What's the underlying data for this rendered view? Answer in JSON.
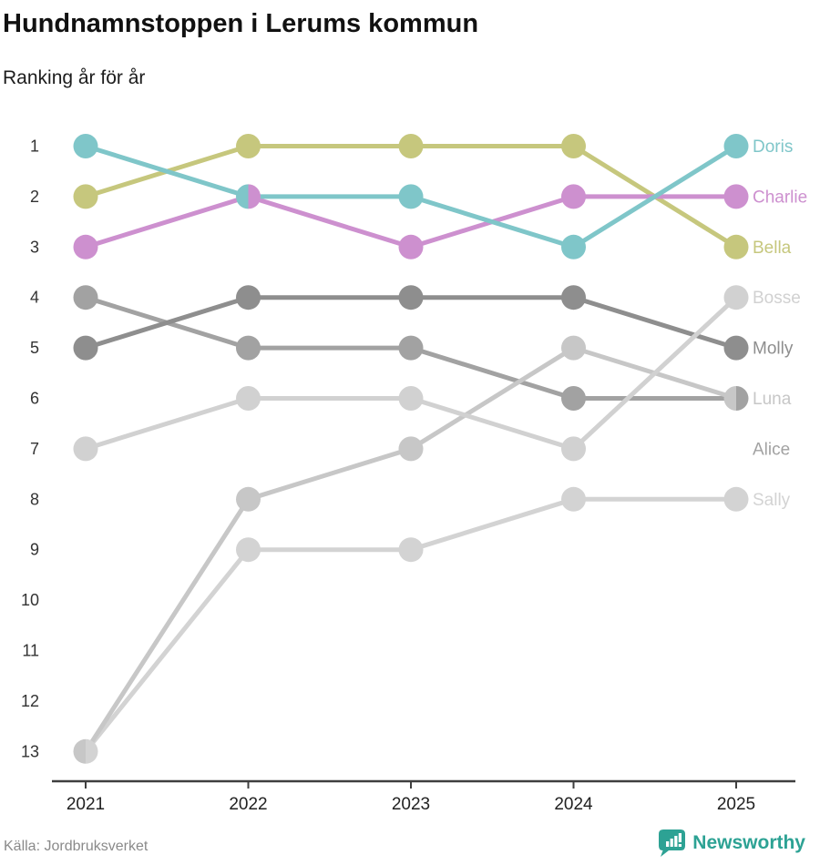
{
  "page": {
    "title": "Hundnamnstoppen i Lerums kommun",
    "subtitle": "Ranking år för år",
    "source": "Källa: Jordbruksverket",
    "brand": "Newsworthy",
    "brand_color": "#2da294",
    "logo_icon": "bar-chart-speech-bubble-icon"
  },
  "chart_data": {
    "type": "line",
    "variant": "bump_ranking_chart",
    "title": "Hundnamnstoppen i Lerums kommun",
    "subtitle": "Ranking år för år",
    "x_labels": [
      "2021",
      "2022",
      "2023",
      "2024",
      "2025"
    ],
    "y_ticks": [
      1,
      2,
      3,
      4,
      5,
      6,
      7,
      8,
      9,
      10,
      11,
      12,
      13
    ],
    "ylim": [
      1,
      13
    ],
    "y_inverted": true,
    "grid": false,
    "legend_position": "right-of-last-point",
    "axis_color": "#3f3f3f",
    "x_tick_label_color": "#222222",
    "y_tick_label_color": "#333333",
    "series": [
      {
        "name": "Doris",
        "color": "#7fc6c9",
        "ranks": [
          1,
          2,
          2,
          3,
          1
        ],
        "label_rank": 1
      },
      {
        "name": "Charlie",
        "color": "#cd90cf",
        "ranks": [
          3,
          2,
          3,
          2,
          2
        ],
        "label_rank": 2
      },
      {
        "name": "Bella",
        "color": "#c6c77d",
        "ranks": [
          2,
          1,
          1,
          1,
          3
        ],
        "label_rank": 3
      },
      {
        "name": "Bosse",
        "color": "#d1d1d1",
        "ranks": [
          7,
          6,
          6,
          7,
          4
        ],
        "label_rank": 4
      },
      {
        "name": "Molly",
        "color": "#8e8e8e",
        "ranks": [
          5,
          4,
          4,
          4,
          5
        ],
        "label_rank": 5
      },
      {
        "name": "Luna",
        "color": "#c7c7c7",
        "ranks": [
          13,
          8,
          7,
          5,
          6
        ],
        "label_rank": 6
      },
      {
        "name": "Alice",
        "color": "#a2a2a2",
        "ranks": [
          4,
          5,
          5,
          6,
          6
        ],
        "label_rank": 7
      },
      {
        "name": "Sally",
        "color": "#d3d3d3",
        "ranks": [
          13,
          9,
          9,
          8,
          8
        ],
        "label_rank": 8
      }
    ],
    "z_order": [
      "Sally",
      "Alice",
      "Luna",
      "Molly",
      "Bosse",
      "Bella",
      "Charlie",
      "Doris"
    ]
  }
}
